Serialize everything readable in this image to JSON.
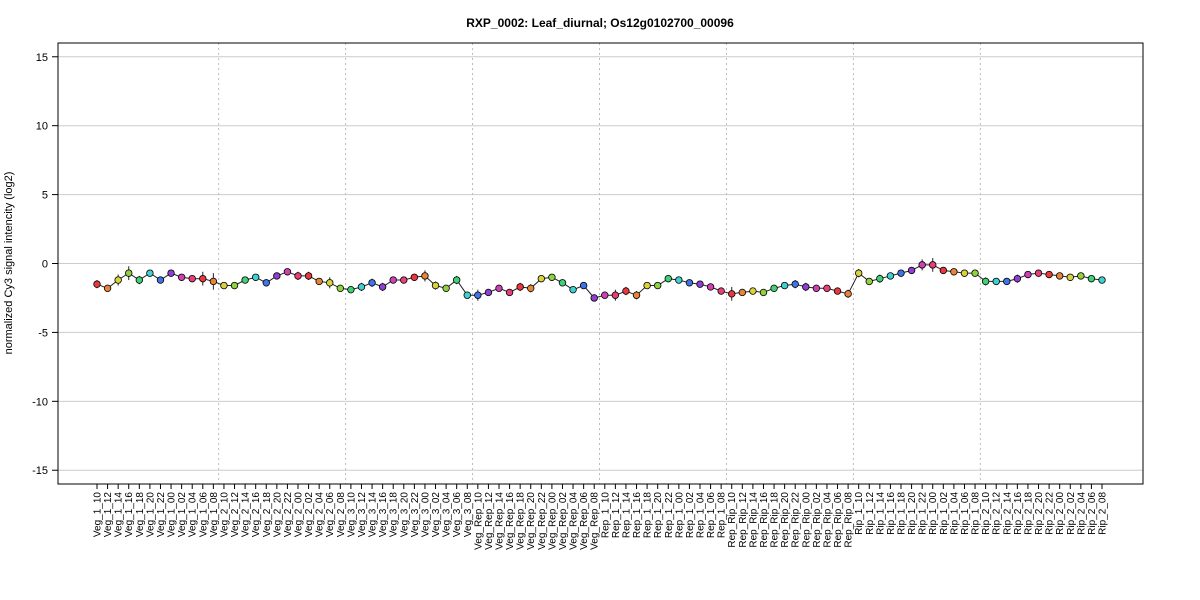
{
  "chart_data": {
    "type": "line",
    "title": "RXP_0002: Leaf_diurnal; Os12g0102700_00096",
    "xlabel": "",
    "ylabel": "normalized Cy3 signal intencity (log2)",
    "ylim": [
      -16,
      16
    ],
    "yticks": [
      -15,
      -10,
      -5,
      0,
      5,
      10,
      15
    ],
    "grid": true,
    "legend": "none",
    "group_separators_after": [
      "Veg_1_08",
      "Veg_2_08",
      "Veg_3_08",
      "Veg_Rep_08",
      "Rep_1_08",
      "Rep_Rip_08",
      "Rip_1_08"
    ],
    "colors": {
      "line": "#222222",
      "grid": "#cccccc",
      "separator": "#bbbbbb",
      "palette": [
        "#e8383d",
        "#e8843a",
        "#d9d33b",
        "#8fd13f",
        "#3fd174",
        "#3fd1d1",
        "#3f74e8",
        "#8f3fd1",
        "#d13fb5",
        "#e83f7a"
      ]
    },
    "categories": [
      "Veg_1_10",
      "Veg_1_12",
      "Veg_1_14",
      "Veg_1_16",
      "Veg_1_18",
      "Veg_1_20",
      "Veg_1_22",
      "Veg_1_00",
      "Veg_1_02",
      "Veg_1_04",
      "Veg_1_06",
      "Veg_1_08",
      "Veg_2_10",
      "Veg_2_12",
      "Veg_2_14",
      "Veg_2_16",
      "Veg_2_18",
      "Veg_2_20",
      "Veg_2_22",
      "Veg_2_00",
      "Veg_2_02",
      "Veg_2_04",
      "Veg_2_06",
      "Veg_2_08",
      "Veg_3_10",
      "Veg_3_12",
      "Veg_3_14",
      "Veg_3_16",
      "Veg_3_18",
      "Veg_3_20",
      "Veg_3_22",
      "Veg_3_00",
      "Veg_3_02",
      "Veg_3_04",
      "Veg_3_06",
      "Veg_3_08",
      "Veg_Rep_10",
      "Veg_Rep_12",
      "Veg_Rep_14",
      "Veg_Rep_16",
      "Veg_Rep_18",
      "Veg_Rep_20",
      "Veg_Rep_22",
      "Veg_Rep_00",
      "Veg_Rep_02",
      "Veg_Rep_04",
      "Veg_Rep_06",
      "Veg_Rep_08",
      "Rep_1_10",
      "Rep_1_12",
      "Rep_1_14",
      "Rep_1_16",
      "Rep_1_18",
      "Rep_1_20",
      "Rep_1_22",
      "Rep_1_00",
      "Rep_1_02",
      "Rep_1_04",
      "Rep_1_06",
      "Rep_1_08",
      "Rep_Rip_10",
      "Rep_Rip_12",
      "Rep_Rip_14",
      "Rep_Rip_16",
      "Rep_Rip_18",
      "Rep_Rip_20",
      "Rep_Rip_22",
      "Rep_Rip_00",
      "Rep_Rip_02",
      "Rep_Rip_04",
      "Rep_Rip_06",
      "Rep_Rip_08",
      "Rip_1_10",
      "Rip_1_12",
      "Rip_1_14",
      "Rip_1_16",
      "Rip_1_18",
      "Rip_1_20",
      "Rip_1_22",
      "Rip_1_00",
      "Rip_1_02",
      "Rip_1_04",
      "Rip_1_06",
      "Rip_1_08",
      "Rip_2_10",
      "Rip_2_12",
      "Rip_2_14",
      "Rip_2_16",
      "Rip_2_18",
      "Rip_2_20",
      "Rip_2_22",
      "Rip_2_00",
      "Rip_2_02",
      "Rip_2_04",
      "Rip_2_06",
      "Rip_2_08"
    ],
    "series": [
      {
        "values": [
          -1.5,
          -1.8,
          -1.2,
          -0.7,
          -1.2,
          -0.7,
          -1.2,
          -0.7,
          -1.0,
          -1.1,
          -1.1,
          -1.3,
          -1.6,
          -1.6,
          -1.2,
          -1.0,
          -1.4,
          -0.9,
          -0.6,
          -0.9,
          -0.9,
          -1.3,
          -1.4,
          -1.8,
          -1.9,
          -1.7,
          -1.4,
          -1.7,
          -1.2,
          -1.2,
          -1.0,
          -0.9,
          -1.6,
          -1.8,
          -1.2,
          -2.3,
          -2.3,
          -2.1,
          -1.8,
          -2.1,
          -1.7,
          -1.8,
          -1.1,
          -1.0,
          -1.4,
          -1.9,
          -1.6,
          -2.5,
          -2.3,
          -2.3,
          -2.0,
          -2.3,
          -1.6,
          -1.6,
          -1.1,
          -1.2,
          -1.4,
          -1.5,
          -1.7,
          -2.0,
          -2.2,
          -2.1,
          -2.0,
          -2.1,
          -1.8,
          -1.6,
          -1.5,
          -1.7,
          -1.8,
          -1.8,
          -2.0,
          -2.2,
          -0.7,
          -1.3,
          -1.1,
          -0.9,
          -0.7,
          -0.5,
          -0.1,
          -0.1,
          -0.5,
          -0.6,
          -0.7,
          -0.7,
          -1.3,
          -1.3,
          -1.3,
          -1.1,
          -0.8,
          -0.7,
          -0.8,
          -0.9,
          -1.0,
          -0.9,
          -1.1,
          -1.2
        ],
        "errors": [
          0.3,
          0.2,
          0.4,
          0.5,
          0.3,
          0.2,
          0.2,
          0.2,
          0.2,
          0.2,
          0.5,
          0.6,
          0.2,
          0.2,
          0.2,
          0.2,
          0.2,
          0.2,
          0.2,
          0.3,
          0.3,
          0.2,
          0.4,
          0.2,
          0.2,
          0.3,
          0.3,
          0.3,
          0.2,
          0.2,
          0.2,
          0.4,
          0.3,
          0.2,
          0.3,
          0.2,
          0.4,
          0.2,
          0.2,
          0.2,
          0.3,
          0.3,
          0.2,
          0.2,
          0.2,
          0.2,
          0.2,
          0.2,
          0.2,
          0.4,
          0.3,
          0.3,
          0.2,
          0.2,
          0.2,
          0.2,
          0.2,
          0.2,
          0.2,
          0.2,
          0.5,
          0.2,
          0.2,
          0.2,
          0.2,
          0.2,
          0.3,
          0.3,
          0.2,
          0.2,
          0.2,
          0.3,
          0.3,
          0.2,
          0.3,
          0.2,
          0.2,
          0.2,
          0.4,
          0.5,
          0.2,
          0.2,
          0.2,
          0.2,
          0.3,
          0.2,
          0.2,
          0.3,
          0.2,
          0.2,
          0.2,
          0.2,
          0.2,
          0.2,
          0.2,
          0.2
        ]
      }
    ]
  }
}
